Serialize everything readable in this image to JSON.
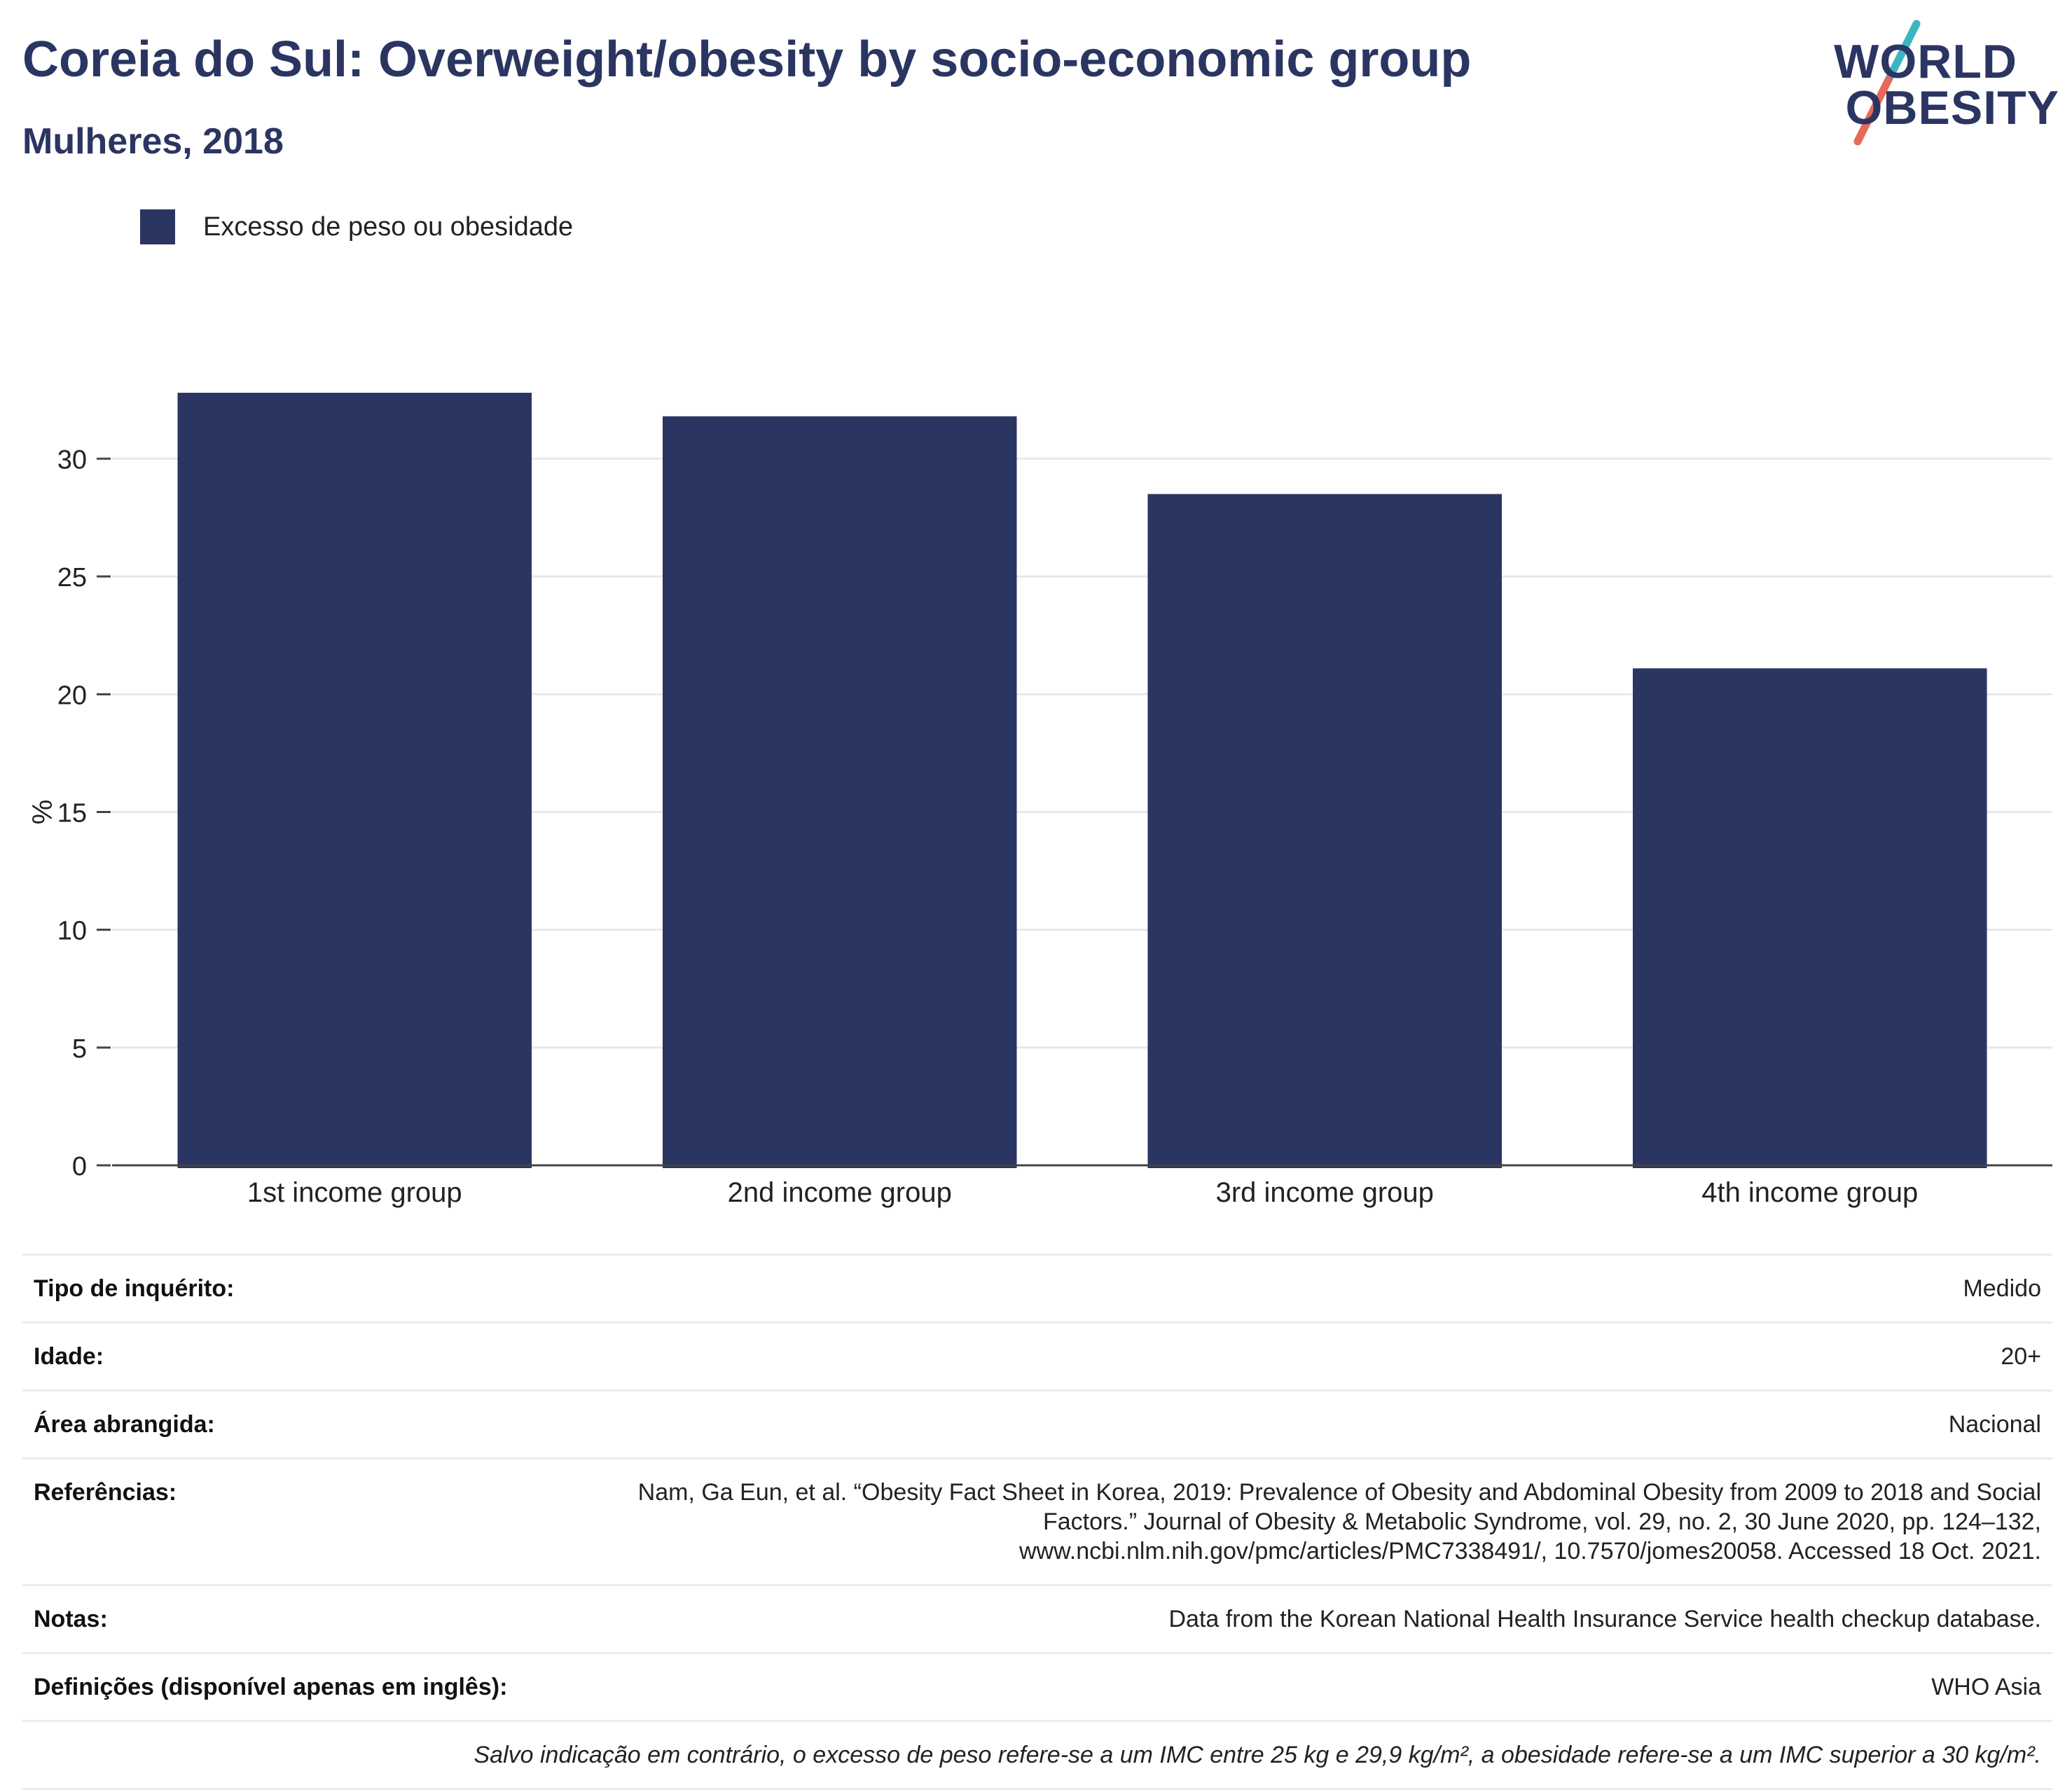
{
  "title": "Coreia do Sul: Overweight/obesity by socio-economic group",
  "subtitle": "Mulheres, 2018",
  "logo": {
    "line1": "WORLD",
    "line2": "OBESITY",
    "colors": {
      "navy": "#2b3562",
      "teal": "#3bb5c2",
      "coral": "#e8685a"
    }
  },
  "legend": {
    "label": "Excesso de peso ou obesidade",
    "color": "#2b3562"
  },
  "chart_data": {
    "type": "bar",
    "title": "Coreia do Sul: Overweight/obesity by socio-economic group",
    "subtitle": "Mulheres, 2018",
    "categories": [
      "1st income group",
      "2nd income group",
      "3rd income group",
      "4th income group"
    ],
    "series": [
      {
        "name": "Excesso de peso ou obesidade",
        "values": [
          32.8,
          31.8,
          28.5,
          21.1
        ],
        "color": "#2b3562"
      }
    ],
    "ylabel": "%",
    "xlabel": "",
    "ylim": [
      0,
      33
    ],
    "yticks": [
      0,
      5,
      10,
      15,
      20,
      25,
      30
    ],
    "grid": true,
    "legend_position": "top-left"
  },
  "meta": {
    "rows": [
      {
        "key": "Tipo de inquérito:",
        "value": "Medido"
      },
      {
        "key": "Idade:",
        "value": "20+"
      },
      {
        "key": "Área abrangida:",
        "value": "Nacional"
      },
      {
        "key": "Referências:",
        "value": "Nam, Ga Eun, et al. “Obesity Fact Sheet in Korea, 2019: Prevalence of Obesity and Abdominal Obesity from 2009 to 2018 and Social Factors.” Journal of Obesity & Metabolic Syndrome, vol. 29, no. 2, 30 June 2020, pp. 124–132, www.ncbi.nlm.nih.gov/pmc/articles/PMC7338491/, 10.7570/jomes20058. Accessed 18 Oct. 2021."
      },
      {
        "key": "Notas:",
        "value": "Data from the Korean National Health Insurance Service health checkup database."
      },
      {
        "key": "Definições (disponível apenas em inglês):",
        "value": "WHO Asia"
      }
    ],
    "footnote": "Salvo indicação em contrário, o excesso de peso refere-se a um IMC entre 25 kg e 29,9 kg/m², a obesidade refere-se a um IMC superior a 30 kg/m²."
  }
}
